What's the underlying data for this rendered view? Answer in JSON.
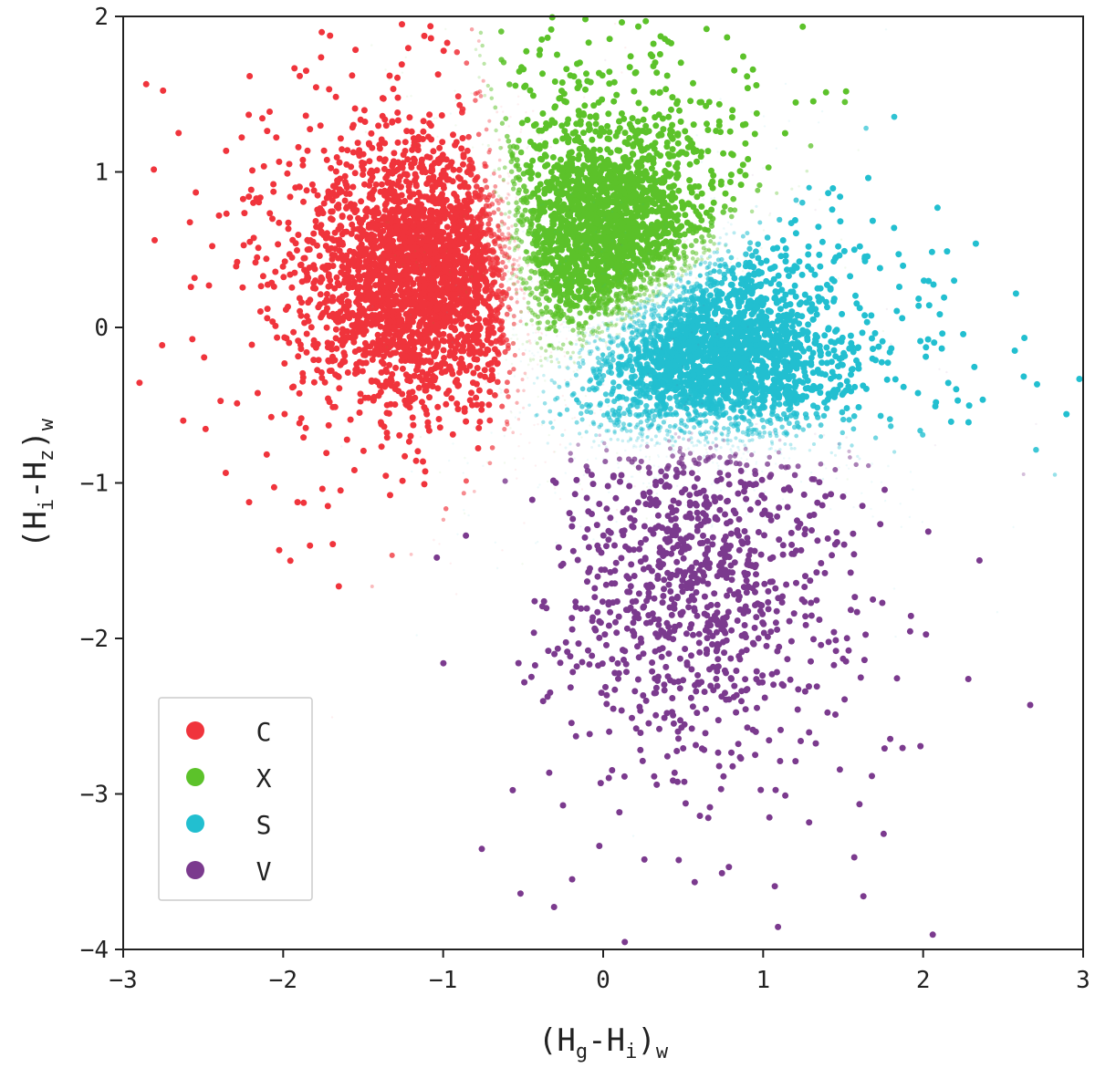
{
  "chart_data": {
    "type": "scatter",
    "xlabel": {
      "open": "(H",
      "sub1": "g",
      "mid": "-H",
      "sub2": "i",
      "close": ")",
      "sub3": "w"
    },
    "ylabel": {
      "open": "(H",
      "sub1": "i",
      "mid": "-H",
      "sub2": "z",
      "close": ")",
      "sub3": "w"
    },
    "xlim": [
      -3,
      3
    ],
    "ylim": [
      -4,
      2
    ],
    "xticks": [
      -3,
      -2,
      -1,
      0,
      1,
      2,
      3
    ],
    "yticks": [
      -4,
      -3,
      -2,
      -1,
      0,
      1,
      2
    ],
    "xtick_labels": [
      "−3",
      "−2",
      "−1",
      "0",
      "1",
      "2",
      "3"
    ],
    "ytick_labels": [
      "−4",
      "−3",
      "−2",
      "−1",
      "0",
      "1",
      "2"
    ],
    "grid": false,
    "legend_position": "lower-left",
    "series": [
      {
        "name": "C",
        "color": "#f0343c",
        "center": [
          -1.15,
          0.35
        ],
        "spread": [
          0.33,
          0.38
        ],
        "count": 3000
      },
      {
        "name": "X",
        "color": "#5cc22a",
        "center": [
          0.0,
          0.6
        ],
        "spread": [
          0.32,
          0.38
        ],
        "count": 2600
      },
      {
        "name": "S",
        "color": "#22bfd0",
        "center": [
          0.65,
          -0.2
        ],
        "spread": [
          0.4,
          0.32
        ],
        "count": 3000
      },
      {
        "name": "V",
        "color": "#7b3a8e",
        "center": [
          0.6,
          -1.6
        ],
        "spread": [
          0.38,
          0.55
        ],
        "count": 1100
      }
    ]
  }
}
